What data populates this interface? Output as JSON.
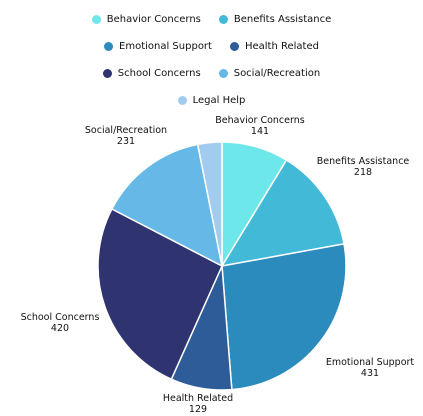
{
  "chart_data": {
    "type": "pie",
    "start_angle_deg": 0,
    "direction": "clockwise",
    "legend_position": "top",
    "slices": [
      {
        "label": "Behavior Concerns",
        "value": 141,
        "color": "#6ee7ea"
      },
      {
        "label": "Benefits Assistance",
        "value": 218,
        "color": "#42b9d6"
      },
      {
        "label": "Emotional Support",
        "value": 431,
        "color": "#2b8bbd"
      },
      {
        "label": "Health Related",
        "value": 129,
        "color": "#2d5c99"
      },
      {
        "label": "School Concerns",
        "value": 420,
        "color": "#2f3470"
      },
      {
        "label": "Social/Recreation",
        "value": 231,
        "color": "#66b9e6"
      },
      {
        "label": "Legal Help",
        "value": 51,
        "color": "#a1cbef"
      }
    ]
  }
}
